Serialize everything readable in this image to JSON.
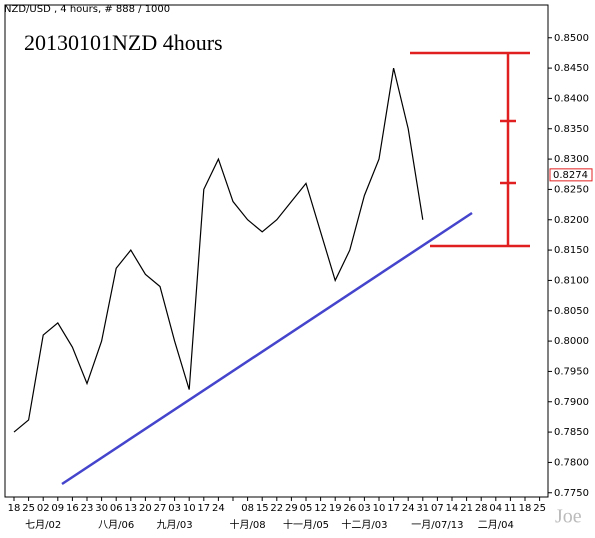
{
  "chart_data": {
    "type": "line",
    "header": "NZD/USD , 4 hours, # 888 / 1000",
    "title": "20130101NZD 4hours",
    "watermark": "Joe",
    "categories": [
      "18",
      "25",
      "02",
      "09",
      "16",
      "23",
      "30",
      "06",
      "13",
      "20",
      "27",
      "03",
      "10",
      "17",
      "24",
      null,
      "08",
      "15",
      "22",
      "29",
      "05",
      "12",
      "19",
      "26",
      "03",
      "10",
      "17",
      "24",
      "31",
      "07",
      "14",
      "21",
      "28",
      "04",
      "11",
      "18",
      "25"
    ],
    "month_categories": [
      null,
      null,
      "七月/02",
      null,
      null,
      null,
      null,
      "八月/06",
      null,
      null,
      null,
      "九月/03",
      null,
      null,
      null,
      null,
      "十月/08",
      null,
      null,
      null,
      "十一月/05",
      null,
      null,
      null,
      "十二月/03",
      null,
      null,
      null,
      null,
      "一月/07/13",
      null,
      null,
      null,
      "二月/04",
      null,
      null,
      null
    ],
    "series": [
      {
        "name": "NZD/USD",
        "color": "#000000",
        "values": [
          0.785,
          0.787,
          0.801,
          0.803,
          0.799,
          0.793,
          0.8,
          0.812,
          0.815,
          0.811,
          0.809,
          0.8,
          0.792,
          0.825,
          0.83,
          0.823,
          0.82,
          0.818,
          0.82,
          0.823,
          0.826,
          0.818,
          0.81,
          0.815,
          0.824,
          0.83,
          0.845,
          0.835,
          0.82,
          null,
          null,
          null,
          null,
          null,
          null,
          null,
          null
        ]
      }
    ],
    "last_price": 0.8274,
    "ylim": [
      0.7743,
      0.8554
    ],
    "yticks": [
      {
        "value": 0.775,
        "label": "0.7750"
      },
      {
        "value": 0.78,
        "label": "0.7800"
      },
      {
        "value": 0.785,
        "label": "0.7850"
      },
      {
        "value": 0.79,
        "label": "0.7900"
      },
      {
        "value": 0.795,
        "label": "0.7950"
      },
      {
        "value": 0.8,
        "label": "0.8000"
      },
      {
        "value": 0.805,
        "label": "0.8050"
      },
      {
        "value": 0.81,
        "label": "0.8100"
      },
      {
        "value": 0.815,
        "label": "0.8150"
      },
      {
        "value": 0.82,
        "label": "0.8200"
      },
      {
        "value": 0.825,
        "label": "0.8250"
      },
      {
        "value": 0.83,
        "label": "0.8300"
      },
      {
        "value": 0.835,
        "label": "0.8350"
      },
      {
        "value": 0.84,
        "label": "0.8400"
      },
      {
        "value": 0.845,
        "label": "0.8450"
      },
      {
        "value": 0.85,
        "label": "0.8500"
      }
    ]
  }
}
